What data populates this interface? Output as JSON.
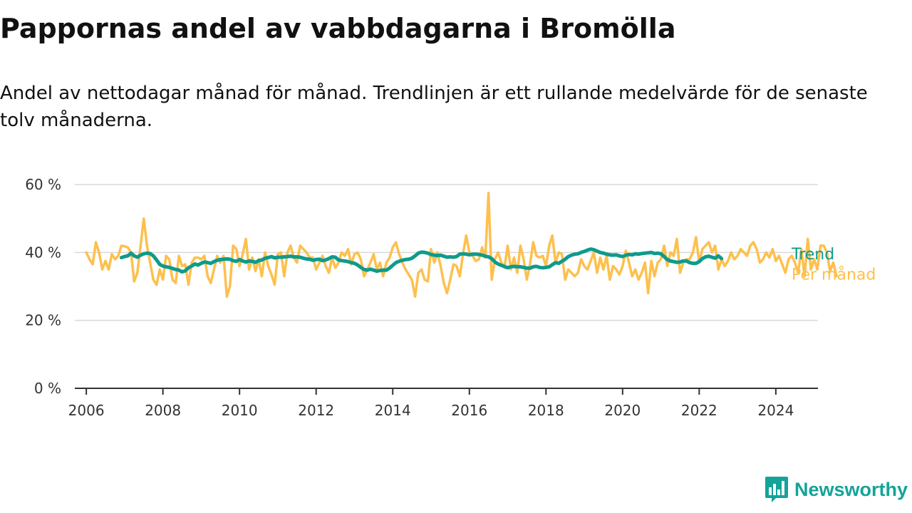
{
  "header": {
    "title": "Pappornas andel av vabbdagarna i Bromölla",
    "subtitle": "Andel av nettodagar månad för månad. Trendlinjen är ett rullande medelvärde för de senaste tolv månaderna."
  },
  "brand": {
    "name": "Newsworthy",
    "icon": "newsworthy-logo-icon",
    "color": "#14a39a"
  },
  "chart_data": {
    "type": "line",
    "title": "Pappornas andel av vabbdagarna i Bromölla",
    "subtitle": "Andel av nettodagar månad för månad. Trendlinjen är ett rullande medelvärde för de senaste tolv månaderna.",
    "xlabel": "",
    "ylabel": "",
    "x_range": [
      2005.7,
      2025.1
    ],
    "x_ticks": [
      2006,
      2008,
      2010,
      2012,
      2014,
      2016,
      2018,
      2020,
      2022,
      2024
    ],
    "x_tick_labels": [
      "2006",
      "2008",
      "2010",
      "2012",
      "2014",
      "2016",
      "2018",
      "2020",
      "2022",
      "2024"
    ],
    "ylim": [
      0,
      60
    ],
    "y_ticks": [
      0,
      20,
      40,
      60
    ],
    "y_tick_labels": [
      "0 %",
      "20 %",
      "40 %",
      "60 %"
    ],
    "grid": true,
    "legend": "inline labels at right end of lines",
    "series": [
      {
        "name": "Per månad",
        "color": "#fdc04e",
        "start": 2006.0,
        "step": 0.0833333,
        "values": [
          40,
          38,
          36.5,
          43,
          40,
          35,
          37.5,
          35,
          39.5,
          38,
          39,
          42,
          41.8,
          41.5,
          40,
          31.5,
          34,
          42,
          50,
          42,
          37,
          32,
          30.5,
          35,
          32,
          39,
          38,
          32,
          31,
          39,
          36,
          36.5,
          30.5,
          37,
          38.5,
          38.5,
          38,
          39,
          33,
          31,
          35,
          39,
          37,
          39,
          27,
          30,
          42,
          41,
          36,
          39.5,
          44,
          35,
          38.5,
          34.5,
          38,
          33,
          40,
          36,
          33.5,
          30.5,
          39.5,
          40,
          33,
          40,
          42,
          38.5,
          37,
          42,
          41,
          40,
          38.5,
          38.5,
          35,
          37,
          39,
          36,
          34,
          38.5,
          35.5,
          37,
          40,
          39,
          41,
          36.5,
          39.5,
          40,
          38,
          33,
          35,
          37,
          39.5,
          35,
          37,
          33,
          37,
          38.5,
          41.5,
          43,
          39.5,
          37,
          35,
          33.5,
          32,
          27,
          34,
          35,
          32,
          31.5,
          41,
          37,
          40,
          36,
          31,
          28,
          32,
          36.5,
          36,
          33,
          39.5,
          45,
          40,
          39,
          37.5,
          38,
          41.5,
          38.5,
          57.5,
          32,
          38,
          40,
          37,
          35.5,
          42,
          35,
          38.5,
          34,
          42,
          38,
          32,
          36.5,
          43,
          39,
          38.5,
          39,
          36,
          42,
          45,
          37,
          40,
          39.5,
          32,
          35,
          34,
          33,
          34,
          38,
          36,
          35,
          37.5,
          40,
          34,
          38.5,
          35,
          39,
          32,
          36,
          35,
          33.5,
          36,
          40.5,
          37,
          33,
          35,
          32,
          34,
          37,
          28,
          37.5,
          33,
          37,
          38,
          42,
          36,
          40,
          39,
          44,
          34,
          37,
          38,
          38,
          40,
          44.5,
          37,
          41,
          42,
          43,
          40,
          42,
          35,
          38,
          36,
          37.5,
          40,
          38,
          39,
          41,
          40,
          39,
          42,
          43,
          41,
          37,
          38,
          40,
          38.5,
          41,
          37.5,
          39,
          36.5,
          34,
          38,
          39,
          37,
          34,
          41,
          33,
          44,
          35,
          38,
          35,
          42,
          42,
          40,
          34.5,
          37,
          33
        ],
        "label": "Per månad"
      },
      {
        "name": "Trend",
        "color": "#0f9a8c",
        "start": 2006.9167,
        "step": 0.0833333,
        "values": [
          38.5,
          38.8,
          39,
          39.8,
          39,
          38.6,
          39.2,
          39.6,
          39.8,
          39.7,
          39,
          37.8,
          36.5,
          36,
          35.8,
          35.6,
          35.3,
          35,
          34.8,
          34.3,
          34.6,
          35.5,
          36,
          36.6,
          36.3,
          36.8,
          37.2,
          37,
          36.8,
          37.3,
          37.7,
          37.9,
          38,
          38.1,
          38,
          37.6,
          37.4,
          37.9,
          37.5,
          37.2,
          37.5,
          37.4,
          37.1,
          37.6,
          37.8,
          38.3,
          38.5,
          38.8,
          38.4,
          38.6,
          38.6,
          38.7,
          38.8,
          38.9,
          38.7,
          38.7,
          38.6,
          38.3,
          38.1,
          38,
          37.7,
          37.9,
          38,
          37.6,
          37.8,
          38.2,
          38.7,
          38.6,
          37.8,
          37.6,
          37.5,
          37.3,
          37,
          36.8,
          36.3,
          35.6,
          35,
          34.8,
          35.1,
          34.8,
          34.5,
          34.7,
          34.8,
          34.8,
          35.4,
          36.2,
          37,
          37.4,
          37.7,
          37.9,
          38,
          38.3,
          39,
          39.8,
          40.1,
          40,
          39.8,
          39.4,
          39.2,
          39.1,
          39.2,
          38.9,
          38.6,
          38.7,
          38.6,
          38.8,
          39.5,
          39.6,
          39.5,
          39.3,
          39.5,
          39.5,
          39.4,
          39.2,
          38.9,
          38.7,
          38.2,
          37.2,
          36.6,
          36.2,
          35.9,
          35.5,
          35.8,
          35.9,
          35.8,
          35.8,
          35.6,
          35.4,
          35.4,
          35.8,
          35.9,
          35.6,
          35.5,
          35.6,
          35.8,
          36.4,
          37,
          36.8,
          37.4,
          38,
          38.8,
          39.2,
          39.5,
          39.6,
          40,
          40.3,
          40.7,
          41,
          40.8,
          40.4,
          40,
          39.8,
          39.5,
          39.3,
          39.2,
          39.3,
          39,
          38.8,
          39.2,
          39.4,
          39.3,
          39.6,
          39.5,
          39.7,
          39.8,
          39.9,
          40,
          39.7,
          39.8,
          39.6,
          38.8,
          37.9,
          37.5,
          37.3,
          37.1,
          37.2,
          37.5,
          37.5,
          37,
          36.8,
          36.8,
          37.3,
          38.2,
          38.7,
          38.9,
          38.6,
          38.3,
          39,
          38.2
        ]
      }
    ]
  }
}
